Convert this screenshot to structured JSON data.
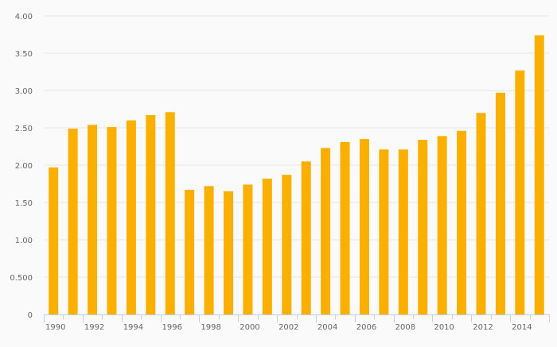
{
  "chart_data": {
    "type": "bar",
    "title": "",
    "xlabel": "",
    "ylabel": "",
    "ylim": [
      0,
      4
    ],
    "grid": true,
    "color": "#fbb000",
    "yticks": [
      "0",
      "0.500",
      "1.00",
      "1.50",
      "2.00",
      "2.50",
      "3.00",
      "3.50",
      "4.00"
    ],
    "ytick_values": [
      0,
      0.5,
      1,
      1.5,
      2,
      2.5,
      3,
      3.5,
      4
    ],
    "categories": [
      "1990",
      "1991",
      "1992",
      "1993",
      "1994",
      "1995",
      "1996",
      "1997",
      "1998",
      "1999",
      "2000",
      "2001",
      "2002",
      "2003",
      "2004",
      "2005",
      "2006",
      "2007",
      "2008",
      "2009",
      "2010",
      "2011",
      "2012",
      "2013",
      "2014",
      "2015"
    ],
    "xtick_labels": [
      "1990",
      "1992",
      "1994",
      "1996",
      "1998",
      "2000",
      "2002",
      "2004",
      "2006",
      "2008",
      "2010",
      "2012",
      "2014"
    ],
    "values": [
      1.97,
      2.49,
      2.54,
      2.51,
      2.6,
      2.67,
      2.71,
      1.67,
      1.72,
      1.65,
      1.74,
      1.82,
      1.87,
      2.05,
      2.23,
      2.31,
      2.35,
      2.21,
      2.21,
      2.34,
      2.39,
      2.46,
      2.7,
      2.97,
      3.27,
      3.74
    ]
  }
}
